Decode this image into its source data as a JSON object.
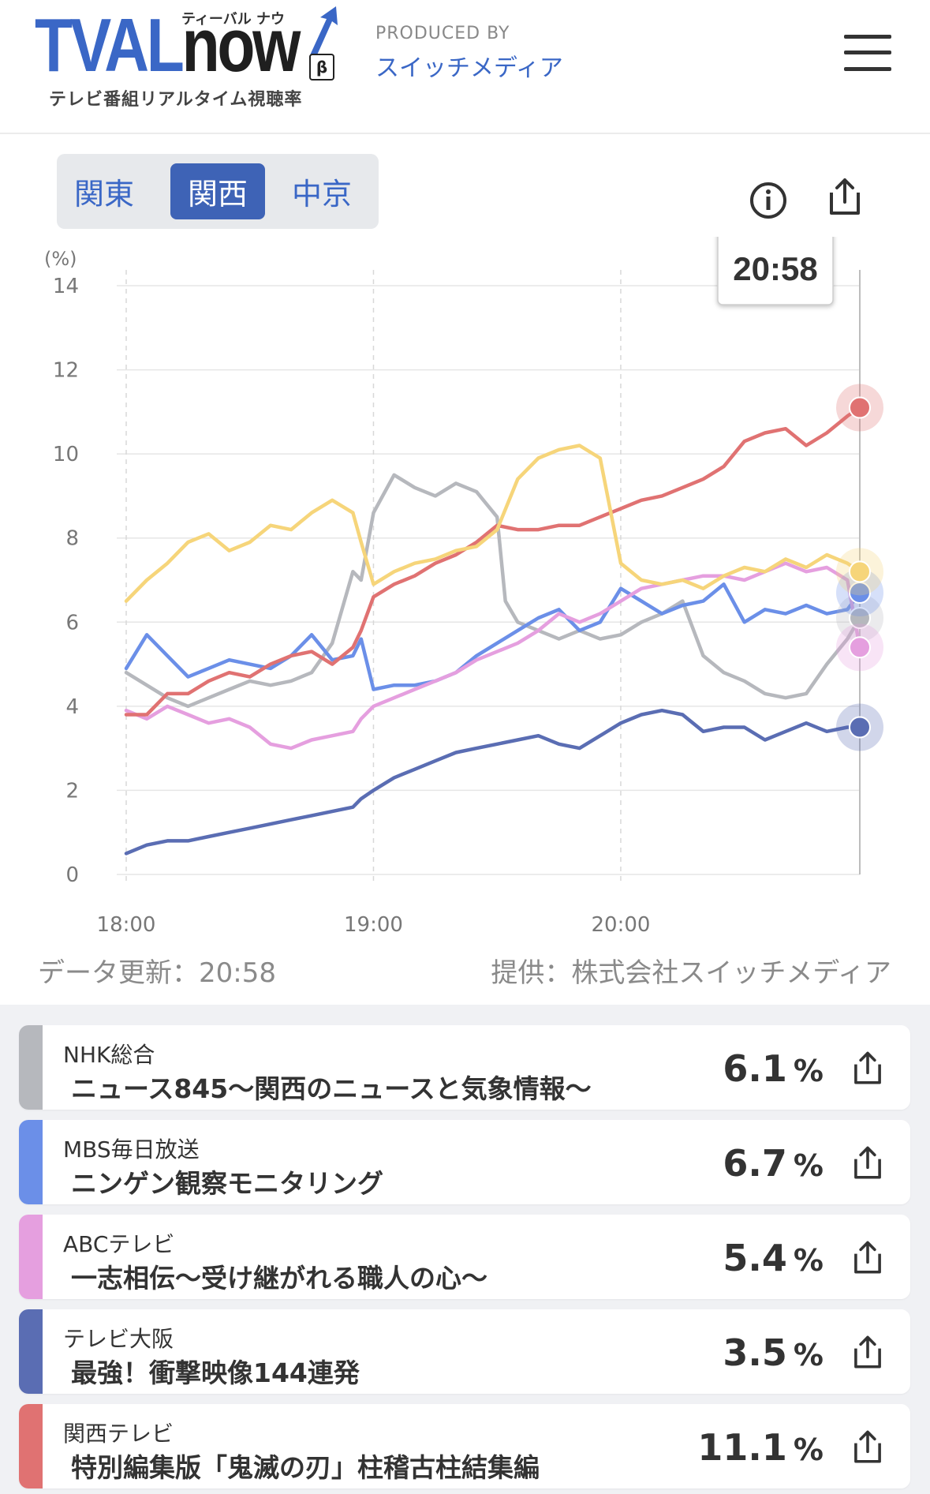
{
  "header": {
    "logo_tval": "TVAL",
    "logo_now": "now",
    "logo_kana": "ティーバル ナウ",
    "logo_beta": "β",
    "logo_sub": "テレビ番組リアルタイム視聴率",
    "produced_label": "PRODUCED BY",
    "produced_name": "スイッチメディア",
    "menu_icon": "hamburger-icon"
  },
  "region_tabs": [
    {
      "label": "関東",
      "active": false
    },
    {
      "label": "関西",
      "active": true
    },
    {
      "label": "中京",
      "active": false
    }
  ],
  "toolbar": {
    "info_icon": "info-icon",
    "share_icon": "share-icon"
  },
  "tooltip": {
    "time": "20:58"
  },
  "chart_data": {
    "type": "line",
    "y_unit": "(%)",
    "ylim": [
      0,
      14
    ],
    "yticks": [
      "0",
      "2",
      "4",
      "6",
      "8",
      "10",
      "12",
      "14"
    ],
    "xlim": [
      "18:00",
      "20:58"
    ],
    "xticks": [
      "18:00",
      "19:00",
      "20:00"
    ],
    "grid": true,
    "series": [
      {
        "color": "#b6b8bd",
        "points": [
          [
            "18:00",
            4.8
          ],
          [
            "18:05",
            4.5
          ],
          [
            "18:10",
            4.2
          ],
          [
            "18:15",
            4.0
          ],
          [
            "18:20",
            4.2
          ],
          [
            "18:25",
            4.4
          ],
          [
            "18:30",
            4.6
          ],
          [
            "18:35",
            4.5
          ],
          [
            "18:40",
            4.6
          ],
          [
            "18:45",
            4.8
          ],
          [
            "18:50",
            5.5
          ],
          [
            "18:55",
            7.2
          ],
          [
            "18:57",
            7.0
          ],
          [
            "19:00",
            8.6
          ],
          [
            "19:05",
            9.5
          ],
          [
            "19:10",
            9.2
          ],
          [
            "19:15",
            9.0
          ],
          [
            "19:20",
            9.3
          ],
          [
            "19:25",
            9.1
          ],
          [
            "19:30",
            8.5
          ],
          [
            "19:32",
            6.5
          ],
          [
            "19:35",
            6.0
          ],
          [
            "19:40",
            5.8
          ],
          [
            "19:45",
            5.6
          ],
          [
            "19:50",
            5.8
          ],
          [
            "19:55",
            5.6
          ],
          [
            "20:00",
            5.7
          ],
          [
            "20:05",
            6.0
          ],
          [
            "20:10",
            6.2
          ],
          [
            "20:15",
            6.5
          ],
          [
            "20:20",
            5.2
          ],
          [
            "20:25",
            4.8
          ],
          [
            "20:30",
            4.6
          ],
          [
            "20:35",
            4.3
          ],
          [
            "20:40",
            4.2
          ],
          [
            "20:45",
            4.3
          ],
          [
            "20:50",
            5.0
          ],
          [
            "20:55",
            5.6
          ],
          [
            "20:58",
            6.1
          ]
        ]
      },
      {
        "color": "#6b8fe8",
        "points": [
          [
            "18:00",
            4.9
          ],
          [
            "18:05",
            5.7
          ],
          [
            "18:10",
            5.2
          ],
          [
            "18:15",
            4.7
          ],
          [
            "18:20",
            4.9
          ],
          [
            "18:25",
            5.1
          ],
          [
            "18:30",
            5.0
          ],
          [
            "18:35",
            4.9
          ],
          [
            "18:40",
            5.2
          ],
          [
            "18:45",
            5.7
          ],
          [
            "18:50",
            5.1
          ],
          [
            "18:55",
            5.2
          ],
          [
            "18:57",
            5.6
          ],
          [
            "19:00",
            4.4
          ],
          [
            "19:05",
            4.5
          ],
          [
            "19:10",
            4.5
          ],
          [
            "19:15",
            4.6
          ],
          [
            "19:20",
            4.8
          ],
          [
            "19:25",
            5.2
          ],
          [
            "19:30",
            5.5
          ],
          [
            "19:35",
            5.8
          ],
          [
            "19:40",
            6.1
          ],
          [
            "19:45",
            6.3
          ],
          [
            "19:50",
            5.8
          ],
          [
            "19:55",
            6.0
          ],
          [
            "20:00",
            6.8
          ],
          [
            "20:05",
            6.5
          ],
          [
            "20:10",
            6.2
          ],
          [
            "20:15",
            6.4
          ],
          [
            "20:20",
            6.5
          ],
          [
            "20:25",
            6.9
          ],
          [
            "20:30",
            6.0
          ],
          [
            "20:35",
            6.3
          ],
          [
            "20:40",
            6.2
          ],
          [
            "20:45",
            6.4
          ],
          [
            "20:50",
            6.2
          ],
          [
            "20:55",
            6.3
          ],
          [
            "20:58",
            6.7
          ]
        ]
      },
      {
        "color": "#e59fdf",
        "points": [
          [
            "18:00",
            3.9
          ],
          [
            "18:05",
            3.7
          ],
          [
            "18:10",
            4.0
          ],
          [
            "18:15",
            3.8
          ],
          [
            "18:20",
            3.6
          ],
          [
            "18:25",
            3.7
          ],
          [
            "18:30",
            3.5
          ],
          [
            "18:35",
            3.1
          ],
          [
            "18:40",
            3.0
          ],
          [
            "18:45",
            3.2
          ],
          [
            "18:50",
            3.3
          ],
          [
            "18:55",
            3.4
          ],
          [
            "18:57",
            3.7
          ],
          [
            "19:00",
            4.0
          ],
          [
            "19:05",
            4.2
          ],
          [
            "19:10",
            4.4
          ],
          [
            "19:15",
            4.6
          ],
          [
            "19:20",
            4.8
          ],
          [
            "19:25",
            5.1
          ],
          [
            "19:30",
            5.3
          ],
          [
            "19:35",
            5.5
          ],
          [
            "19:40",
            5.8
          ],
          [
            "19:45",
            6.2
          ],
          [
            "19:50",
            6.0
          ],
          [
            "19:55",
            6.2
          ],
          [
            "20:00",
            6.5
          ],
          [
            "20:05",
            6.8
          ],
          [
            "20:10",
            6.9
          ],
          [
            "20:15",
            7.0
          ],
          [
            "20:20",
            7.1
          ],
          [
            "20:25",
            7.1
          ],
          [
            "20:30",
            7.0
          ],
          [
            "20:35",
            7.2
          ],
          [
            "20:40",
            7.4
          ],
          [
            "20:45",
            7.2
          ],
          [
            "20:50",
            7.3
          ],
          [
            "20:55",
            7.0
          ],
          [
            "20:58",
            5.4
          ]
        ]
      },
      {
        "color": "#5a6db3",
        "points": [
          [
            "18:00",
            0.5
          ],
          [
            "18:05",
            0.7
          ],
          [
            "18:10",
            0.8
          ],
          [
            "18:15",
            0.8
          ],
          [
            "18:20",
            0.9
          ],
          [
            "18:25",
            1.0
          ],
          [
            "18:30",
            1.1
          ],
          [
            "18:35",
            1.2
          ],
          [
            "18:40",
            1.3
          ],
          [
            "18:45",
            1.4
          ],
          [
            "18:50",
            1.5
          ],
          [
            "18:55",
            1.6
          ],
          [
            "18:57",
            1.8
          ],
          [
            "19:00",
            2.0
          ],
          [
            "19:05",
            2.3
          ],
          [
            "19:10",
            2.5
          ],
          [
            "19:15",
            2.7
          ],
          [
            "19:20",
            2.9
          ],
          [
            "19:25",
            3.0
          ],
          [
            "19:30",
            3.1
          ],
          [
            "19:35",
            3.2
          ],
          [
            "19:40",
            3.3
          ],
          [
            "19:45",
            3.1
          ],
          [
            "19:50",
            3.0
          ],
          [
            "19:55",
            3.3
          ],
          [
            "20:00",
            3.6
          ],
          [
            "20:05",
            3.8
          ],
          [
            "20:10",
            3.9
          ],
          [
            "20:15",
            3.8
          ],
          [
            "20:20",
            3.4
          ],
          [
            "20:25",
            3.5
          ],
          [
            "20:30",
            3.5
          ],
          [
            "20:35",
            3.2
          ],
          [
            "20:40",
            3.4
          ],
          [
            "20:45",
            3.6
          ],
          [
            "20:50",
            3.4
          ],
          [
            "20:55",
            3.5
          ],
          [
            "20:58",
            3.5
          ]
        ]
      },
      {
        "color": "#e07272",
        "points": [
          [
            "18:00",
            3.8
          ],
          [
            "18:05",
            3.8
          ],
          [
            "18:10",
            4.3
          ],
          [
            "18:15",
            4.3
          ],
          [
            "18:20",
            4.6
          ],
          [
            "18:25",
            4.8
          ],
          [
            "18:30",
            4.7
          ],
          [
            "18:35",
            5.0
          ],
          [
            "18:40",
            5.2
          ],
          [
            "18:45",
            5.3
          ],
          [
            "18:50",
            5.0
          ],
          [
            "18:55",
            5.4
          ],
          [
            "18:57",
            5.8
          ],
          [
            "19:00",
            6.6
          ],
          [
            "19:05",
            6.9
          ],
          [
            "19:10",
            7.1
          ],
          [
            "19:15",
            7.4
          ],
          [
            "19:20",
            7.6
          ],
          [
            "19:25",
            7.9
          ],
          [
            "19:30",
            8.3
          ],
          [
            "19:35",
            8.2
          ],
          [
            "19:40",
            8.2
          ],
          [
            "19:45",
            8.3
          ],
          [
            "19:50",
            8.3
          ],
          [
            "19:55",
            8.5
          ],
          [
            "20:00",
            8.7
          ],
          [
            "20:05",
            8.9
          ],
          [
            "20:10",
            9.0
          ],
          [
            "20:15",
            9.2
          ],
          [
            "20:20",
            9.4
          ],
          [
            "20:25",
            9.7
          ],
          [
            "20:30",
            10.3
          ],
          [
            "20:35",
            10.5
          ],
          [
            "20:40",
            10.6
          ],
          [
            "20:45",
            10.2
          ],
          [
            "20:50",
            10.5
          ],
          [
            "20:55",
            10.9
          ],
          [
            "20:58",
            11.1
          ]
        ]
      },
      {
        "color": "#f6d57a",
        "points": [
          [
            "18:00",
            6.5
          ],
          [
            "18:05",
            7.0
          ],
          [
            "18:10",
            7.4
          ],
          [
            "18:15",
            7.9
          ],
          [
            "18:20",
            8.1
          ],
          [
            "18:25",
            7.7
          ],
          [
            "18:30",
            7.9
          ],
          [
            "18:35",
            8.3
          ],
          [
            "18:40",
            8.2
          ],
          [
            "18:45",
            8.6
          ],
          [
            "18:50",
            8.9
          ],
          [
            "18:55",
            8.6
          ],
          [
            "18:57",
            7.9
          ],
          [
            "19:00",
            6.9
          ],
          [
            "19:05",
            7.2
          ],
          [
            "19:10",
            7.4
          ],
          [
            "19:15",
            7.5
          ],
          [
            "19:20",
            7.7
          ],
          [
            "19:25",
            7.8
          ],
          [
            "19:30",
            8.2
          ],
          [
            "19:35",
            9.4
          ],
          [
            "19:40",
            9.9
          ],
          [
            "19:45",
            10.1
          ],
          [
            "19:50",
            10.2
          ],
          [
            "19:55",
            9.9
          ],
          [
            "20:00",
            7.4
          ],
          [
            "20:05",
            7.0
          ],
          [
            "20:10",
            6.9
          ],
          [
            "20:15",
            7.0
          ],
          [
            "20:20",
            6.8
          ],
          [
            "20:25",
            7.1
          ],
          [
            "20:30",
            7.3
          ],
          [
            "20:35",
            7.2
          ],
          [
            "20:40",
            7.5
          ],
          [
            "20:45",
            7.3
          ],
          [
            "20:50",
            7.6
          ],
          [
            "20:55",
            7.4
          ],
          [
            "20:58",
            7.2
          ]
        ]
      }
    ]
  },
  "update": {
    "label": "データ更新：20:58",
    "source": "提供：株式会社スイッチメディア"
  },
  "programs": [
    {
      "channel": "NHK総合",
      "title": "ニュース845〜関西のニュースと気象情報〜",
      "rating": "6.1",
      "unit": "%",
      "color": "#b6b8bd"
    },
    {
      "channel": "MBS毎日放送",
      "title": "ニンゲン観察モニタリング",
      "rating": "6.7",
      "unit": "%",
      "color": "#6b8fe8"
    },
    {
      "channel": "ABCテレビ",
      "title": "一志相伝〜受け継がれる職人の心〜",
      "rating": "5.4",
      "unit": "%",
      "color": "#e59fdf"
    },
    {
      "channel": "テレビ大阪",
      "title": "最強！衝撃映像144連発",
      "rating": "3.5",
      "unit": "%",
      "color": "#5a6db3"
    },
    {
      "channel": "関西テレビ",
      "title": "特別編集版「鬼滅の刃」柱稽古柱結集編",
      "rating": "11.1",
      "unit": "%",
      "color": "#e07272"
    }
  ]
}
